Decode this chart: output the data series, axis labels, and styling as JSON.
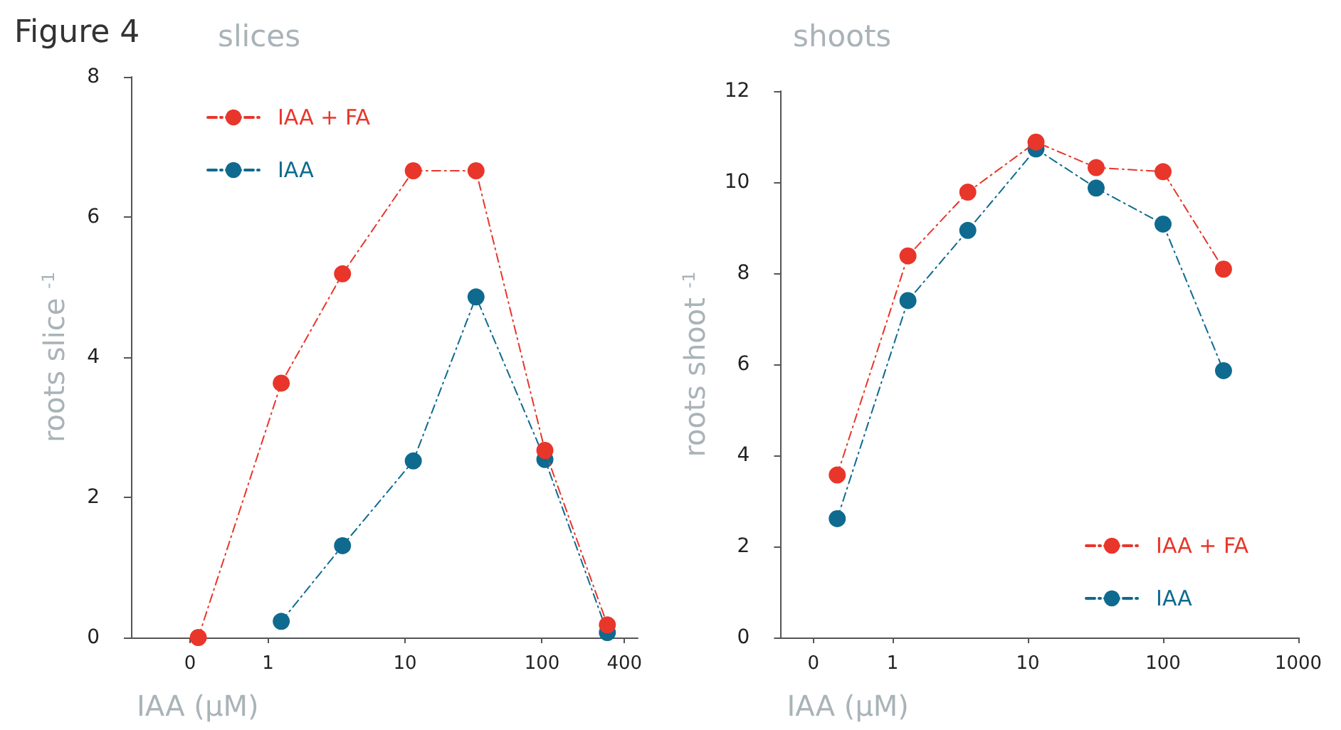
{
  "chart_data": [
    {
      "type": "line",
      "title": "slices",
      "annotations": [
        "Figure 4"
      ],
      "xlabel": "IAA (µM)",
      "ylabel": "roots slice $^{-1}$",
      "log": "x",
      "xlim": [
        0.1,
        500
      ],
      "xticks": [
        {
          "value": 0.27,
          "label": "0"
        },
        1,
        10,
        100,
        400
      ],
      "ylim": [
        0,
        8
      ],
      "yticks": [
        0,
        2,
        4,
        6,
        8
      ],
      "grid": false,
      "legend": "top left",
      "marker": "circle",
      "line_style": "dashed",
      "series": [
        {
          "name": "IAA + FA",
          "color": "#e8362a",
          "x": [
            0.31,
            1.25,
            3.5,
            11.5,
            33,
            105,
            300
          ],
          "values": [
            0.0,
            3.63,
            5.19,
            6.66,
            6.66,
            2.67,
            0.18
          ]
        },
        {
          "name": "IAA",
          "color": "#0f6a8f",
          "x": [
            1.25,
            3.5,
            11.5,
            33,
            105,
            300
          ],
          "values": [
            0.23,
            1.31,
            2.52,
            4.86,
            2.54,
            0.07
          ]
        }
      ]
    },
    {
      "type": "line",
      "title": "shoots",
      "xlabel": "IAA (µM)",
      "ylabel": "roots shoot $^{-1}$",
      "log": "x",
      "xlim": [
        0.15,
        1000
      ],
      "xticks": [
        {
          "value": 0.26,
          "label": "0"
        },
        1,
        10,
        100,
        1000
      ],
      "ylim": [
        0,
        12
      ],
      "yticks": [
        0,
        2,
        4,
        6,
        8,
        10,
        12
      ],
      "grid": false,
      "legend": "bottom right",
      "marker": "circle",
      "line_style": "dashed",
      "series": [
        {
          "name": "IAA + FA",
          "color": "#e8362a",
          "x": [
            0.39,
            1.3,
            3.6,
            11.5,
            32,
            100,
            280
          ],
          "values": [
            3.57,
            8.38,
            9.78,
            10.88,
            10.32,
            10.23,
            8.09
          ]
        },
        {
          "name": "IAA",
          "color": "#0f6a8f",
          "x": [
            0.39,
            1.3,
            3.6,
            11.5,
            32,
            100,
            280
          ],
          "values": [
            2.61,
            7.4,
            8.94,
            10.73,
            9.87,
            9.08,
            5.86
          ]
        }
      ]
    }
  ]
}
